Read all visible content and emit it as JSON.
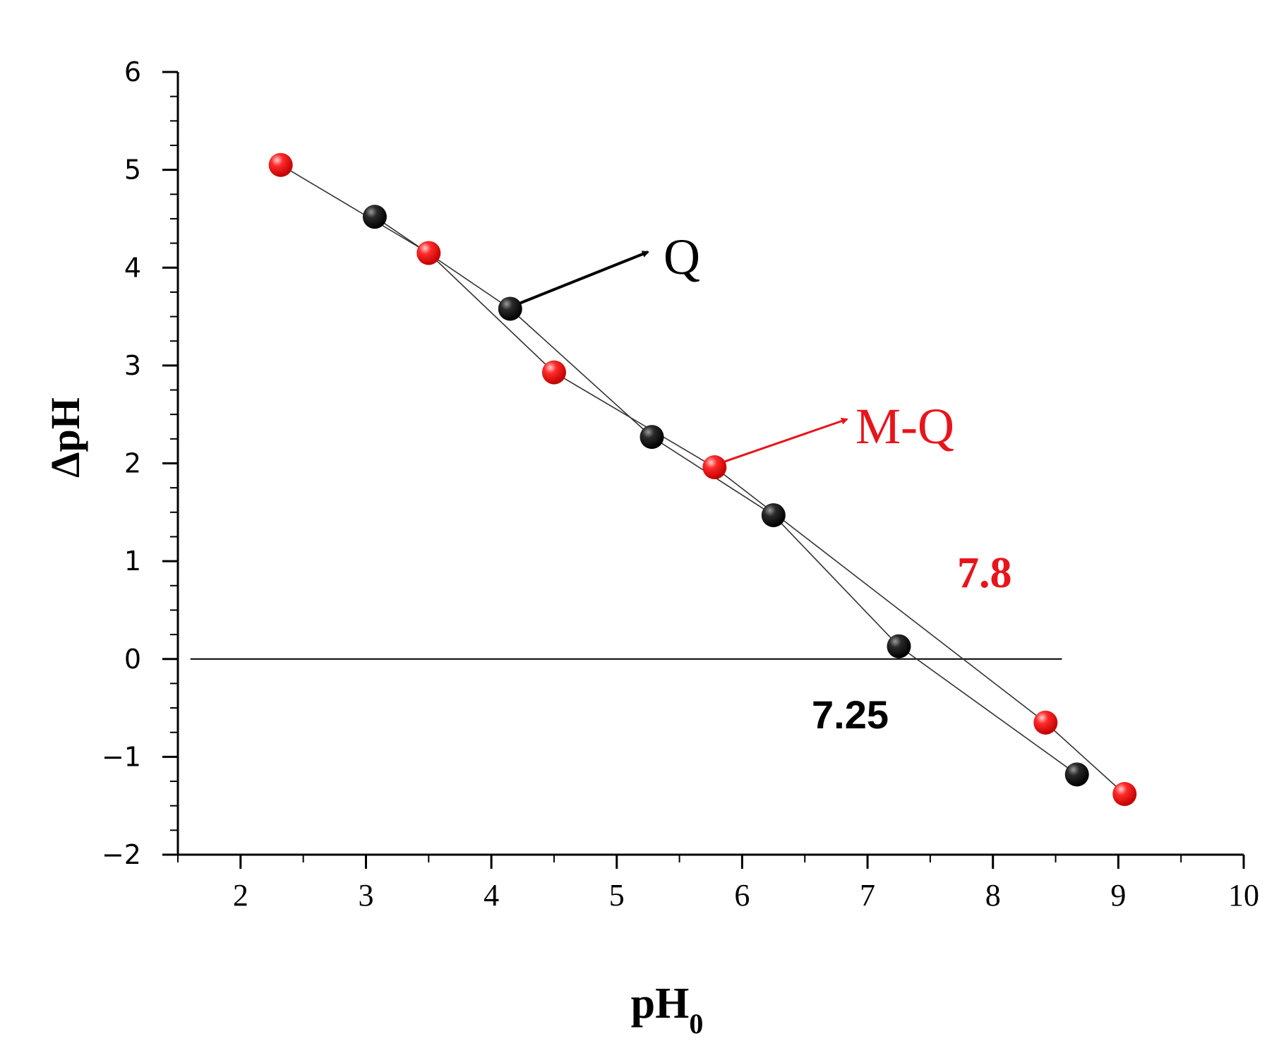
{
  "chart_data": {
    "type": "scatter",
    "xlabel_main": "pH",
    "xlabel_sub": "0",
    "ylabel": "ΔpH",
    "xlim": [
      1.5,
      10
    ],
    "ylim": [
      -2,
      6
    ],
    "x_ticks": [
      "2",
      "3",
      "4",
      "5",
      "6",
      "7",
      "8",
      "9",
      "10"
    ],
    "y_ticks": [
      "−2",
      "−1",
      "0",
      "1",
      "2",
      "3",
      "4",
      "5",
      "6"
    ],
    "grid": false,
    "series": [
      {
        "name": "Q",
        "color": "#000000",
        "points": [
          [
            3.07,
            4.52
          ],
          [
            4.15,
            3.58
          ],
          [
            5.28,
            2.27
          ],
          [
            6.25,
            1.47
          ],
          [
            7.25,
            0.13
          ],
          [
            8.67,
            -1.18
          ]
        ]
      },
      {
        "name": "M-Q",
        "color": "#e8141b",
        "points": [
          [
            2.32,
            5.05
          ],
          [
            3.5,
            4.15
          ],
          [
            4.5,
            2.93
          ],
          [
            5.78,
            1.96
          ],
          [
            8.42,
            -0.65
          ],
          [
            9.05,
            -1.38
          ]
        ]
      }
    ],
    "reference_line": {
      "y": 0,
      "x_from": 1.6,
      "x_to": 8.55
    },
    "annotations": [
      {
        "id": "q",
        "text": "Q",
        "color": "#000000"
      },
      {
        "id": "mq",
        "text": "M-Q",
        "color": "#e8141b"
      },
      {
        "id": "pzc_mq",
        "text": "7.8",
        "color": "#e8141b"
      },
      {
        "id": "pzc_q",
        "text": "7.25",
        "color": "#000000"
      }
    ]
  }
}
